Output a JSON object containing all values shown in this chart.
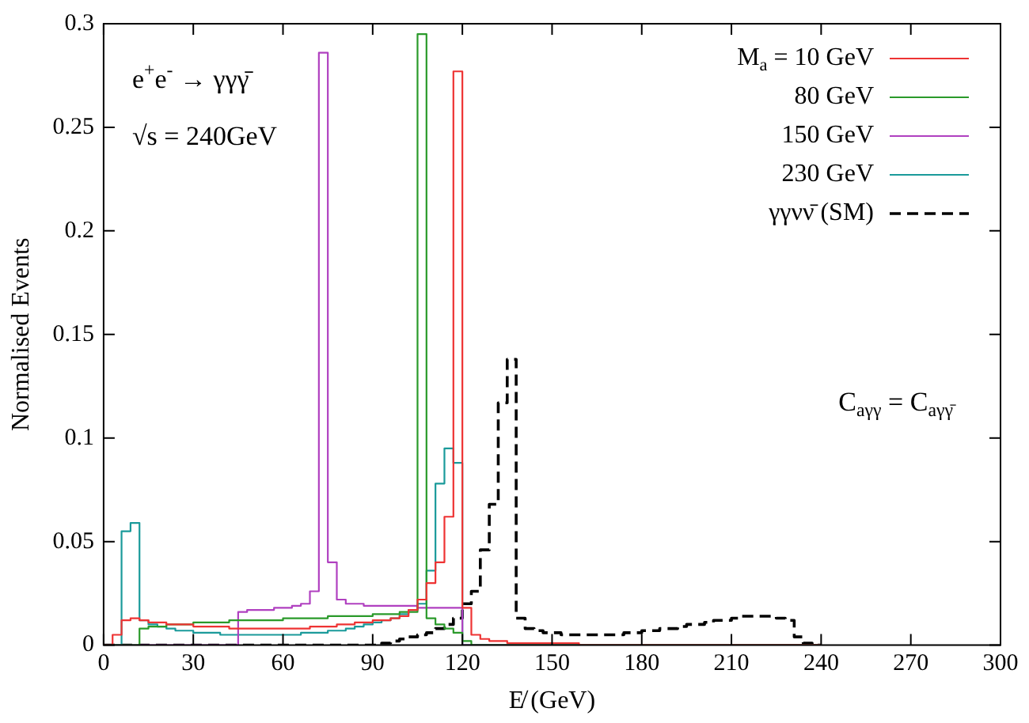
{
  "chart_data": {
    "type": "histogram",
    "xlabel": "E̸ (GeV)",
    "ylabel": "Normalised Events",
    "annotations": [
      "e$^{+}$e$^{-}$ → γγγ̄",
      "√s = 240GeV",
      "C$_{aγγ}$ = C$_{aγγ̄}$"
    ],
    "bins": [
      0,
      3,
      6,
      9,
      12,
      15,
      18,
      21,
      24,
      27,
      30,
      33,
      36,
      39,
      42,
      45,
      48,
      51,
      54,
      57,
      60,
      63,
      66,
      69,
      72,
      75,
      78,
      81,
      84,
      87,
      90,
      93,
      96,
      99,
      102,
      105,
      108,
      111,
      114,
      117,
      120,
      123,
      126,
      129,
      132,
      135,
      138,
      141,
      144,
      147,
      150,
      153,
      156,
      159,
      162,
      165,
      168,
      171,
      174,
      177,
      180,
      183,
      186,
      189,
      192,
      195,
      198,
      201,
      204,
      207,
      210,
      213,
      216,
      219,
      222,
      225,
      228,
      231,
      234,
      237,
      240
    ],
    "series": [
      {
        "name": "M$_{a}$ = 10 GeV",
        "color": "#ee3333",
        "values": [
          0,
          0.005,
          0.012,
          0.013,
          0.012,
          0.011,
          0.011,
          0.01,
          0.01,
          0.01,
          0.009,
          0.009,
          0.009,
          0.009,
          0.008,
          0.008,
          0.008,
          0.008,
          0.008,
          0.008,
          0.008,
          0.008,
          0.008,
          0.009,
          0.009,
          0.009,
          0.01,
          0.01,
          0.011,
          0.011,
          0.012,
          0.012,
          0.013,
          0.014,
          0.017,
          0.022,
          0.03,
          0.04,
          0.062,
          0.277,
          0.018,
          0.005,
          0.003,
          0.002,
          0.002,
          0.001,
          0.001,
          0.001,
          0.001,
          0.001,
          0.001,
          0.001,
          0.001,
          0,
          0,
          0,
          0,
          0,
          0,
          0,
          0,
          0,
          0,
          0,
          0,
          0,
          0,
          0,
          0,
          0,
          0,
          0,
          0,
          0,
          0,
          0,
          0,
          0,
          0,
          0
        ]
      },
      {
        "name": "80 GeV",
        "color": "#2a9a2a",
        "values": [
          0,
          0,
          0,
          0,
          0.008,
          0.009,
          0.009,
          0.01,
          0.01,
          0.01,
          0.011,
          0.011,
          0.011,
          0.011,
          0.012,
          0.012,
          0.012,
          0.012,
          0.012,
          0.012,
          0.013,
          0.013,
          0.013,
          0.013,
          0.013,
          0.014,
          0.014,
          0.014,
          0.014,
          0.014,
          0.015,
          0.015,
          0.015,
          0.016,
          0.016,
          0.295,
          0.013,
          0.01,
          0.008,
          0.006,
          0.002,
          0,
          0,
          0,
          0,
          0,
          0,
          0,
          0,
          0,
          0,
          0,
          0,
          0,
          0,
          0,
          0,
          0,
          0,
          0,
          0,
          0,
          0,
          0,
          0,
          0,
          0,
          0,
          0,
          0,
          0,
          0,
          0,
          0,
          0,
          0,
          0,
          0,
          0,
          0
        ]
      },
      {
        "name": "150 GeV",
        "color": "#b040c0",
        "values": [
          0,
          0,
          0,
          0,
          0,
          0,
          0,
          0,
          0,
          0,
          0,
          0,
          0,
          0,
          0,
          0.016,
          0.017,
          0.017,
          0.017,
          0.018,
          0.018,
          0.019,
          0.02,
          0.026,
          0.286,
          0.04,
          0.022,
          0.02,
          0.02,
          0.019,
          0.019,
          0.019,
          0.019,
          0.019,
          0.019,
          0.018,
          0.018,
          0.018,
          0.018,
          0.018,
          0,
          0,
          0,
          0,
          0,
          0,
          0,
          0,
          0,
          0,
          0,
          0,
          0,
          0,
          0,
          0,
          0,
          0,
          0,
          0,
          0,
          0,
          0,
          0,
          0,
          0,
          0,
          0,
          0,
          0,
          0,
          0,
          0,
          0,
          0,
          0,
          0,
          0,
          0,
          0
        ]
      },
      {
        "name": "230 GeV",
        "color": "#1a9a9a",
        "values": [
          0,
          0,
          0.055,
          0.059,
          0.012,
          0.01,
          0.009,
          0.008,
          0.007,
          0.007,
          0.006,
          0.006,
          0.006,
          0.005,
          0.005,
          0.005,
          0.005,
          0.005,
          0.005,
          0.005,
          0.005,
          0.005,
          0.006,
          0.006,
          0.006,
          0.007,
          0.007,
          0.008,
          0.009,
          0.01,
          0.011,
          0.012,
          0.013,
          0.015,
          0.017,
          0.02,
          0.036,
          0.078,
          0.095,
          0.088,
          0,
          0,
          0,
          0,
          0,
          0,
          0,
          0,
          0,
          0,
          0,
          0,
          0,
          0,
          0,
          0,
          0,
          0,
          0,
          0,
          0,
          0,
          0,
          0,
          0,
          0,
          0,
          0,
          0,
          0,
          0,
          0,
          0,
          0,
          0,
          0,
          0,
          0,
          0,
          0
        ]
      },
      {
        "name": "γγνν̄ (SM)",
        "color": "#000000",
        "line_style": "dashed",
        "values": [
          0,
          0,
          0,
          0,
          0,
          0,
          0,
          0,
          0,
          0,
          0,
          0,
          0,
          0,
          0,
          0,
          0,
          0,
          0,
          0,
          0,
          0,
          0,
          0,
          0,
          0,
          0,
          0,
          0,
          0,
          0,
          0.001,
          0.002,
          0.003,
          0.004,
          0.005,
          0.006,
          0.008,
          0.01,
          0.013,
          0.02,
          0.026,
          0.046,
          0.068,
          0.117,
          0.138,
          0.013,
          0.008,
          0.007,
          0.006,
          0.006,
          0.005,
          0.005,
          0.005,
          0.005,
          0.005,
          0.005,
          0.005,
          0.006,
          0.006,
          0.007,
          0.007,
          0.008,
          0.008,
          0.009,
          0.01,
          0.01,
          0.011,
          0.012,
          0.012,
          0.013,
          0.014,
          0.014,
          0.014,
          0.014,
          0.013,
          0.012,
          0.004,
          0.001,
          0
        ]
      }
    ],
    "xlim": [
      0,
      300
    ],
    "xticks": [
      0,
      30,
      60,
      90,
      120,
      150,
      180,
      210,
      240,
      270,
      300
    ],
    "ylim": [
      0,
      0.3
    ],
    "yticks": [
      0,
      0.05,
      0.1,
      0.15,
      0.2,
      0.25,
      0.3
    ],
    "grid": false,
    "legend": "top right"
  }
}
